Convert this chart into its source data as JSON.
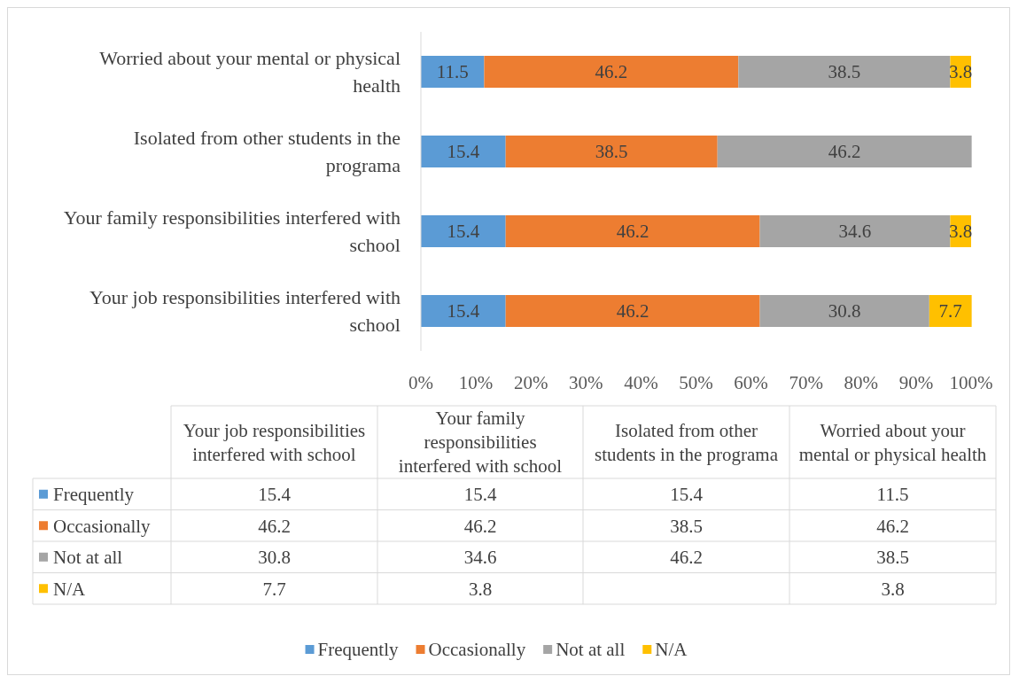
{
  "chart_data": [
    {
      "type": "bar",
      "orientation": "horizontal",
      "stacked": true,
      "categories": [
        "Worried about your mental or physical health",
        "Isolated from other students in the programa",
        "Your family responsibilities interfered with school",
        "Your job responsibilities interfered with school"
      ],
      "series": [
        {
          "name": "Frequently",
          "color": "#5b9bd5",
          "values": [
            11.5,
            15.4,
            15.4,
            15.4
          ]
        },
        {
          "name": "Occasionally",
          "color": "#ed7d31",
          "values": [
            46.2,
            38.5,
            46.2,
            46.2
          ]
        },
        {
          "name": "Not at all",
          "color": "#a5a5a5",
          "values": [
            38.5,
            46.2,
            34.6,
            30.8
          ]
        },
        {
          "name": "N/A",
          "color": "#ffc000",
          "values": [
            3.8,
            null,
            3.8,
            7.7
          ]
        }
      ],
      "xlim": [
        0,
        100
      ],
      "xticks": [
        {
          "value": 0,
          "label": "0%"
        },
        {
          "value": 10,
          "label": "10%"
        },
        {
          "value": 20,
          "label": "20%"
        },
        {
          "value": 30,
          "label": "30%"
        },
        {
          "value": 40,
          "label": "40%"
        },
        {
          "value": 50,
          "label": "50%"
        },
        {
          "value": 60,
          "label": "60%"
        },
        {
          "value": 70,
          "label": "70%"
        },
        {
          "value": 80,
          "label": "80%"
        },
        {
          "value": 90,
          "label": "90%"
        },
        {
          "value": 100,
          "label": "100%"
        }
      ],
      "data_labels": true,
      "legend": "bottom",
      "grid": false
    },
    {
      "type": "other",
      "categories": [
        "Your job responsibilities interfered with school",
        "Your family responsibilities interfered with school",
        "Isolated from other students in the programa",
        "Worried about your mental or physical health"
      ],
      "y_categories": [
        "Frequently",
        "Occasionally",
        "Not at all",
        "N/A"
      ],
      "cell_labels": [
        [
          "15.4",
          "15.4",
          "15.4",
          "11.5"
        ],
        [
          "46.2",
          "46.2",
          "38.5",
          "46.2"
        ],
        [
          "30.8",
          "34.6",
          "46.2",
          "38.5"
        ],
        [
          "7.7",
          "3.8",
          null,
          "3.8"
        ]
      ]
    }
  ]
}
